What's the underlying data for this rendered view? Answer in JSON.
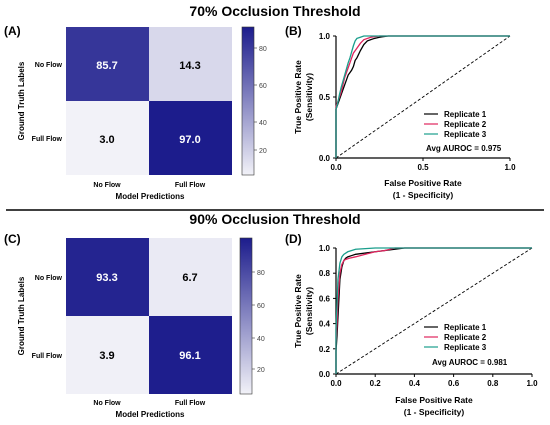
{
  "sections": [
    {
      "title": "70% Occlusion Threshold",
      "cm": {
        "label": "(A)",
        "row_labels": [
          "No Flow",
          "Full Flow"
        ],
        "col_labels": [
          "No Flow",
          "Full Flow"
        ],
        "values": [
          [
            "85.7",
            "14.3"
          ],
          [
            "3.0",
            "97.0"
          ]
        ],
        "ylabel": "Ground Truth Labels",
        "xlabel": "Model Predictions",
        "colorbar_ticks": [
          "80",
          "60",
          "40",
          "20"
        ]
      },
      "roc": {
        "label": "(B)",
        "ylabel_line1": "True Positive Rate",
        "ylabel_line2": "(Sensitivity)",
        "xlabel_line1": "False Positive Rate",
        "xlabel_line2": "(1 -  Specificity)",
        "x_ticks": [
          "0.0",
          "0.5",
          "1.0"
        ],
        "y_ticks": [
          "0.0",
          "0.5",
          "1.0"
        ],
        "avg_text": "Avg AUROC = 0.975"
      }
    },
    {
      "title": "90% Occlusion Threshold",
      "cm": {
        "label": "(C)",
        "row_labels": [
          "No Flow",
          "Full Flow"
        ],
        "col_labels": [
          "No Flow",
          "Full Flow"
        ],
        "values": [
          [
            "93.3",
            "6.7"
          ],
          [
            "3.9",
            "96.1"
          ]
        ],
        "ylabel": "Ground Truth Labels",
        "xlabel": "Model Predictions",
        "colorbar_ticks": [
          "80",
          "60",
          "40",
          "20"
        ]
      },
      "roc": {
        "label": "(D)",
        "ylabel_line1": "True Positive Rate",
        "ylabel_line2": "(Sensitivity)",
        "xlabel_line1": "False Positive Rate",
        "xlabel_line2": "(1 -  Specificity)",
        "x_ticks": [
          "0.0",
          "0.2",
          "0.4",
          "0.6",
          "0.8",
          "1.0"
        ],
        "y_ticks": [
          "0.0",
          "0.2",
          "0.4",
          "0.6",
          "0.8",
          "1.0"
        ],
        "avg_text": "Avg AUROC = 0.981"
      }
    }
  ],
  "chart_data": [
    {
      "type": "heatmap",
      "title": "70% Occlusion Threshold",
      "x_categories": [
        "No Flow",
        "Full Flow"
      ],
      "y_categories": [
        "No Flow",
        "Full Flow"
      ],
      "values": [
        [
          85.7,
          14.3
        ],
        [
          3.0,
          97.0
        ]
      ],
      "xlabel": "Model Predictions",
      "ylabel": "Ground Truth Labels",
      "colorbar_range": [
        3,
        97
      ],
      "colors": {
        "low": "#f2f2f8",
        "high": "#1c1c8c"
      }
    },
    {
      "type": "line",
      "xlabel": "False Positive Rate (1 -  Specificity)",
      "ylabel": "True Positive Rate (Sensitivity)",
      "xlim": [
        0,
        1
      ],
      "ylim": [
        0,
        1
      ],
      "legend_position": "bottom-right",
      "series": [
        {
          "name": "Replicate 1",
          "color": "#000000",
          "x": [
            0,
            0,
            0.01,
            0.02,
            0.03,
            0.04,
            0.05,
            0.06,
            0.07,
            0.08,
            0.09,
            0.1,
            0.11,
            0.12,
            0.13,
            0.14,
            0.16,
            0.18,
            0.2,
            0.22,
            0.25,
            0.3,
            0.4,
            1.0
          ],
          "y": [
            0,
            0.4,
            0.44,
            0.48,
            0.52,
            0.56,
            0.6,
            0.64,
            0.68,
            0.7,
            0.72,
            0.75,
            0.8,
            0.82,
            0.85,
            0.88,
            0.93,
            0.96,
            0.97,
            0.98,
            0.99,
            1.0,
            1.0,
            1.0
          ]
        },
        {
          "name": "Replicate 2",
          "color": "#e0245e",
          "x": [
            0,
            0,
            0.01,
            0.02,
            0.03,
            0.04,
            0.05,
            0.06,
            0.07,
            0.08,
            0.09,
            0.1,
            0.12,
            0.14,
            0.16,
            0.2,
            0.25,
            1.0
          ],
          "y": [
            0,
            0.42,
            0.46,
            0.5,
            0.54,
            0.6,
            0.66,
            0.7,
            0.74,
            0.78,
            0.82,
            0.86,
            0.9,
            0.94,
            0.97,
            0.99,
            1.0,
            1.0
          ]
        },
        {
          "name": "Replicate 3",
          "color": "#1a9e8c",
          "x": [
            0,
            0,
            0.01,
            0.02,
            0.03,
            0.04,
            0.05,
            0.06,
            0.07,
            0.08,
            0.09,
            0.1,
            0.11,
            0.12,
            0.14,
            0.16,
            0.2,
            1.0
          ],
          "y": [
            0,
            0.4,
            0.45,
            0.52,
            0.58,
            0.63,
            0.68,
            0.73,
            0.78,
            0.82,
            0.87,
            0.92,
            0.96,
            0.98,
            0.99,
            1.0,
            1.0,
            1.0
          ]
        }
      ],
      "annotations": [
        "Avg AUROC = 0.975"
      ]
    },
    {
      "type": "heatmap",
      "title": "90% Occlusion Threshold",
      "x_categories": [
        "No Flow",
        "Full Flow"
      ],
      "y_categories": [
        "No Flow",
        "Full Flow"
      ],
      "values": [
        [
          93.3,
          6.7
        ],
        [
          3.9,
          96.1
        ]
      ],
      "xlabel": "Model Predictions",
      "ylabel": "Ground Truth Labels",
      "colorbar_range": [
        3,
        97
      ],
      "colors": {
        "low": "#f2f2f8",
        "high": "#1c1c8c"
      }
    },
    {
      "type": "line",
      "xlabel": "False Positive Rate (1 -  Specificity)",
      "ylabel": "True Positive Rate (Sensitivity)",
      "xlim": [
        0,
        1
      ],
      "ylim": [
        0,
        1
      ],
      "legend_position": "bottom-right",
      "series": [
        {
          "name": "Replicate 1",
          "color": "#000000",
          "x": [
            0,
            0,
            0.005,
            0.01,
            0.015,
            0.02,
            0.03,
            0.04,
            0.05,
            0.06,
            0.08,
            0.1,
            0.15,
            0.2,
            0.25,
            0.3,
            0.35,
            1.0
          ],
          "y": [
            0,
            0.18,
            0.3,
            0.45,
            0.6,
            0.75,
            0.85,
            0.9,
            0.92,
            0.93,
            0.94,
            0.95,
            0.96,
            0.97,
            0.98,
            0.99,
            1.0,
            1.0
          ]
        },
        {
          "name": "Replicate 2",
          "color": "#e0245e",
          "x": [
            0,
            0,
            0.005,
            0.01,
            0.02,
            0.03,
            0.04,
            0.05,
            0.07,
            0.1,
            0.15,
            0.2,
            0.25,
            0.3,
            1.0
          ],
          "y": [
            0,
            0.25,
            0.4,
            0.6,
            0.8,
            0.87,
            0.9,
            0.91,
            0.92,
            0.93,
            0.95,
            0.97,
            0.98,
            1.0,
            1.0
          ]
        },
        {
          "name": "Replicate 3",
          "color": "#1a9e8c",
          "x": [
            0,
            0,
            0.005,
            0.01,
            0.02,
            0.03,
            0.04,
            0.05,
            0.06,
            0.08,
            0.1,
            0.15,
            0.2,
            1.0
          ],
          "y": [
            0,
            0.35,
            0.55,
            0.75,
            0.88,
            0.93,
            0.95,
            0.96,
            0.97,
            0.98,
            0.99,
            0.995,
            1.0,
            1.0
          ]
        }
      ],
      "annotations": [
        "Avg AUROC = 0.981"
      ]
    }
  ]
}
